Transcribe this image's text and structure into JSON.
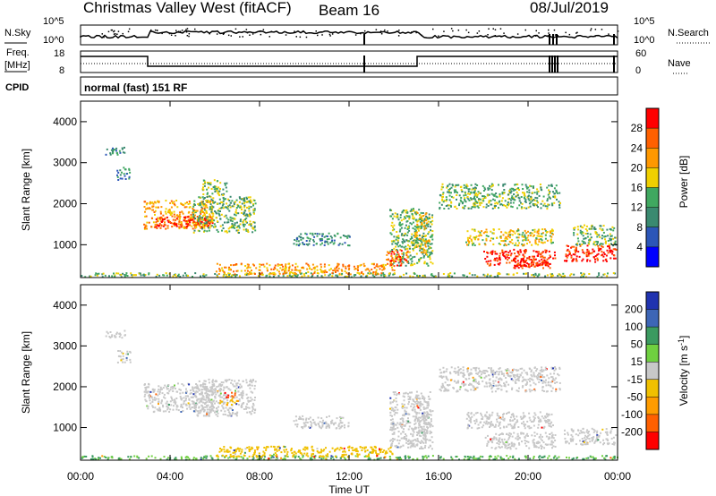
{
  "header": {
    "title": "Christmas Valley West (fitACF)",
    "beam": "Beam 16",
    "date": "08/Jul/2019"
  },
  "noise_panel": {
    "left_label": "N.Sky",
    "right_label": "N.Search",
    "left_ticks": [
      "10^5",
      "10^0"
    ],
    "right_ticks": [
      "10^5",
      "10^0"
    ]
  },
  "freq_panel": {
    "left_label_1": "Freq.",
    "left_label_2": "[MHz]",
    "left_ticks": [
      "18",
      "8"
    ],
    "right_label": "Nave",
    "right_ticks": [
      "60",
      "0"
    ]
  },
  "cpid": {
    "label": "CPID",
    "text": "normal (fast) 151 RF"
  },
  "time_axis": {
    "xlabel": "Time UT",
    "ticks": [
      "00:00",
      "04:00",
      "08:00",
      "12:00",
      "16:00",
      "20:00",
      "00:00"
    ]
  },
  "chart_data": [
    {
      "type": "heatmap",
      "title": "",
      "xlabel": "Time UT",
      "ylabel": "Slant Range [km]",
      "xlim": [
        0,
        24
      ],
      "ylim": [
        200,
        4500
      ],
      "yticks": [
        "1000",
        "2000",
        "3000",
        "4000"
      ],
      "colorbar": {
        "label": "Power [dB]",
        "ticks": [
          "4",
          "8",
          "12",
          "16",
          "20",
          "24",
          "28"
        ],
        "colors": [
          "#0000ff",
          "#2c56b8",
          "#3a8a70",
          "#40a860",
          "#f0d000",
          "#ff9800",
          "#ff6000",
          "#ff0000"
        ]
      },
      "regions": [
        {
          "t": [
            1.1,
            2.0
          ],
          "r": [
            3200,
            3400
          ],
          "level": 2
        },
        {
          "t": [
            1.6,
            2.2
          ],
          "r": [
            2600,
            2900
          ],
          "level": 2
        },
        {
          "t": [
            2.8,
            5.9
          ],
          "r": [
            1400,
            2100
          ],
          "level": 5
        },
        {
          "t": [
            3.3,
            5.9
          ],
          "r": [
            1450,
            1700
          ],
          "level": 7
        },
        {
          "t": [
            5.0,
            7.8
          ],
          "r": [
            1300,
            2200
          ],
          "level": 3
        },
        {
          "t": [
            5.4,
            6.5
          ],
          "r": [
            2200,
            2600
          ],
          "level": 3
        },
        {
          "t": [
            0.0,
            24.0
          ],
          "r": [
            230,
            330
          ],
          "level": 3
        },
        {
          "t": [
            6.0,
            14.0
          ],
          "r": [
            300,
            560
          ],
          "level": 5
        },
        {
          "t": [
            9.5,
            12.0
          ],
          "r": [
            1000,
            1300
          ],
          "level": 2
        },
        {
          "t": [
            13.8,
            15.7
          ],
          "r": [
            500,
            1900
          ],
          "level": 3
        },
        {
          "t": [
            13.6,
            14.6
          ],
          "r": [
            500,
            900
          ],
          "level": 6
        },
        {
          "t": [
            14.9,
            15.6
          ],
          "r": [
            800,
            1800
          ],
          "level": 4
        },
        {
          "t": [
            16.0,
            21.4
          ],
          "r": [
            1900,
            2500
          ],
          "level": 3
        },
        {
          "t": [
            17.2,
            21.1
          ],
          "r": [
            1000,
            1400
          ],
          "level": 4
        },
        {
          "t": [
            18.0,
            21.2
          ],
          "r": [
            500,
            900
          ],
          "level": 7
        },
        {
          "t": [
            19.3,
            21.0
          ],
          "r": [
            450,
            700
          ],
          "level": 7
        },
        {
          "t": [
            21.6,
            23.9
          ],
          "r": [
            600,
            1000
          ],
          "level": 7
        },
        {
          "t": [
            22.0,
            23.9
          ],
          "r": [
            1000,
            1500
          ],
          "level": 3
        }
      ]
    },
    {
      "type": "heatmap",
      "title": "",
      "xlabel": "Time UT",
      "ylabel": "Slant Range [km]",
      "xlim": [
        0,
        24
      ],
      "ylim": [
        200,
        4500
      ],
      "yticks": [
        "1000",
        "2000",
        "3000",
        "4000"
      ],
      "colorbar": {
        "label": "Velocity [m s^-1]",
        "ticks": [
          "200",
          "100",
          "50",
          "15",
          "-15",
          "-50",
          "-100",
          "-200"
        ],
        "colors": [
          "#2033b0",
          "#3d66b6",
          "#3b9a60",
          "#6fd040",
          "#c8c8c8",
          "#f0c000",
          "#ff9c00",
          "#ff6000",
          "#ff0000"
        ]
      },
      "regions": [
        {
          "t": [
            1.1,
            2.0
          ],
          "r": [
            3200,
            3400
          ],
          "v": 0
        },
        {
          "t": [
            1.6,
            2.2
          ],
          "r": [
            2600,
            2900
          ],
          "v": 0
        },
        {
          "t": [
            2.8,
            6.0
          ],
          "r": [
            1400,
            2100
          ],
          "v": 0
        },
        {
          "t": [
            5.0,
            7.8
          ],
          "r": [
            1300,
            2200
          ],
          "v": 0
        },
        {
          "t": [
            6.4,
            6.9
          ],
          "r": [
            1750,
            1900
          ],
          "v": -200
        },
        {
          "t": [
            6.2,
            7.0
          ],
          "r": [
            1550,
            1700
          ],
          "v": -50
        },
        {
          "t": [
            0.0,
            24.0
          ],
          "r": [
            230,
            330
          ],
          "v": 50
        },
        {
          "t": [
            6.0,
            14.0
          ],
          "r": [
            300,
            560
          ],
          "v": -30
        },
        {
          "t": [
            9.5,
            12.0
          ],
          "r": [
            1000,
            1300
          ],
          "v": 0
        },
        {
          "t": [
            13.8,
            15.7
          ],
          "r": [
            500,
            1900
          ],
          "v": 0
        },
        {
          "t": [
            14.9,
            15.6
          ],
          "r": [
            800,
            1800
          ],
          "v": 0
        },
        {
          "t": [
            16.0,
            21.4
          ],
          "r": [
            1900,
            2500
          ],
          "v": 0
        },
        {
          "t": [
            17.2,
            21.1
          ],
          "r": [
            1000,
            1400
          ],
          "v": 0
        },
        {
          "t": [
            18.0,
            21.2
          ],
          "r": [
            500,
            900
          ],
          "v": 0
        },
        {
          "t": [
            21.6,
            23.9
          ],
          "r": [
            600,
            1000
          ],
          "v": 0
        }
      ]
    }
  ]
}
